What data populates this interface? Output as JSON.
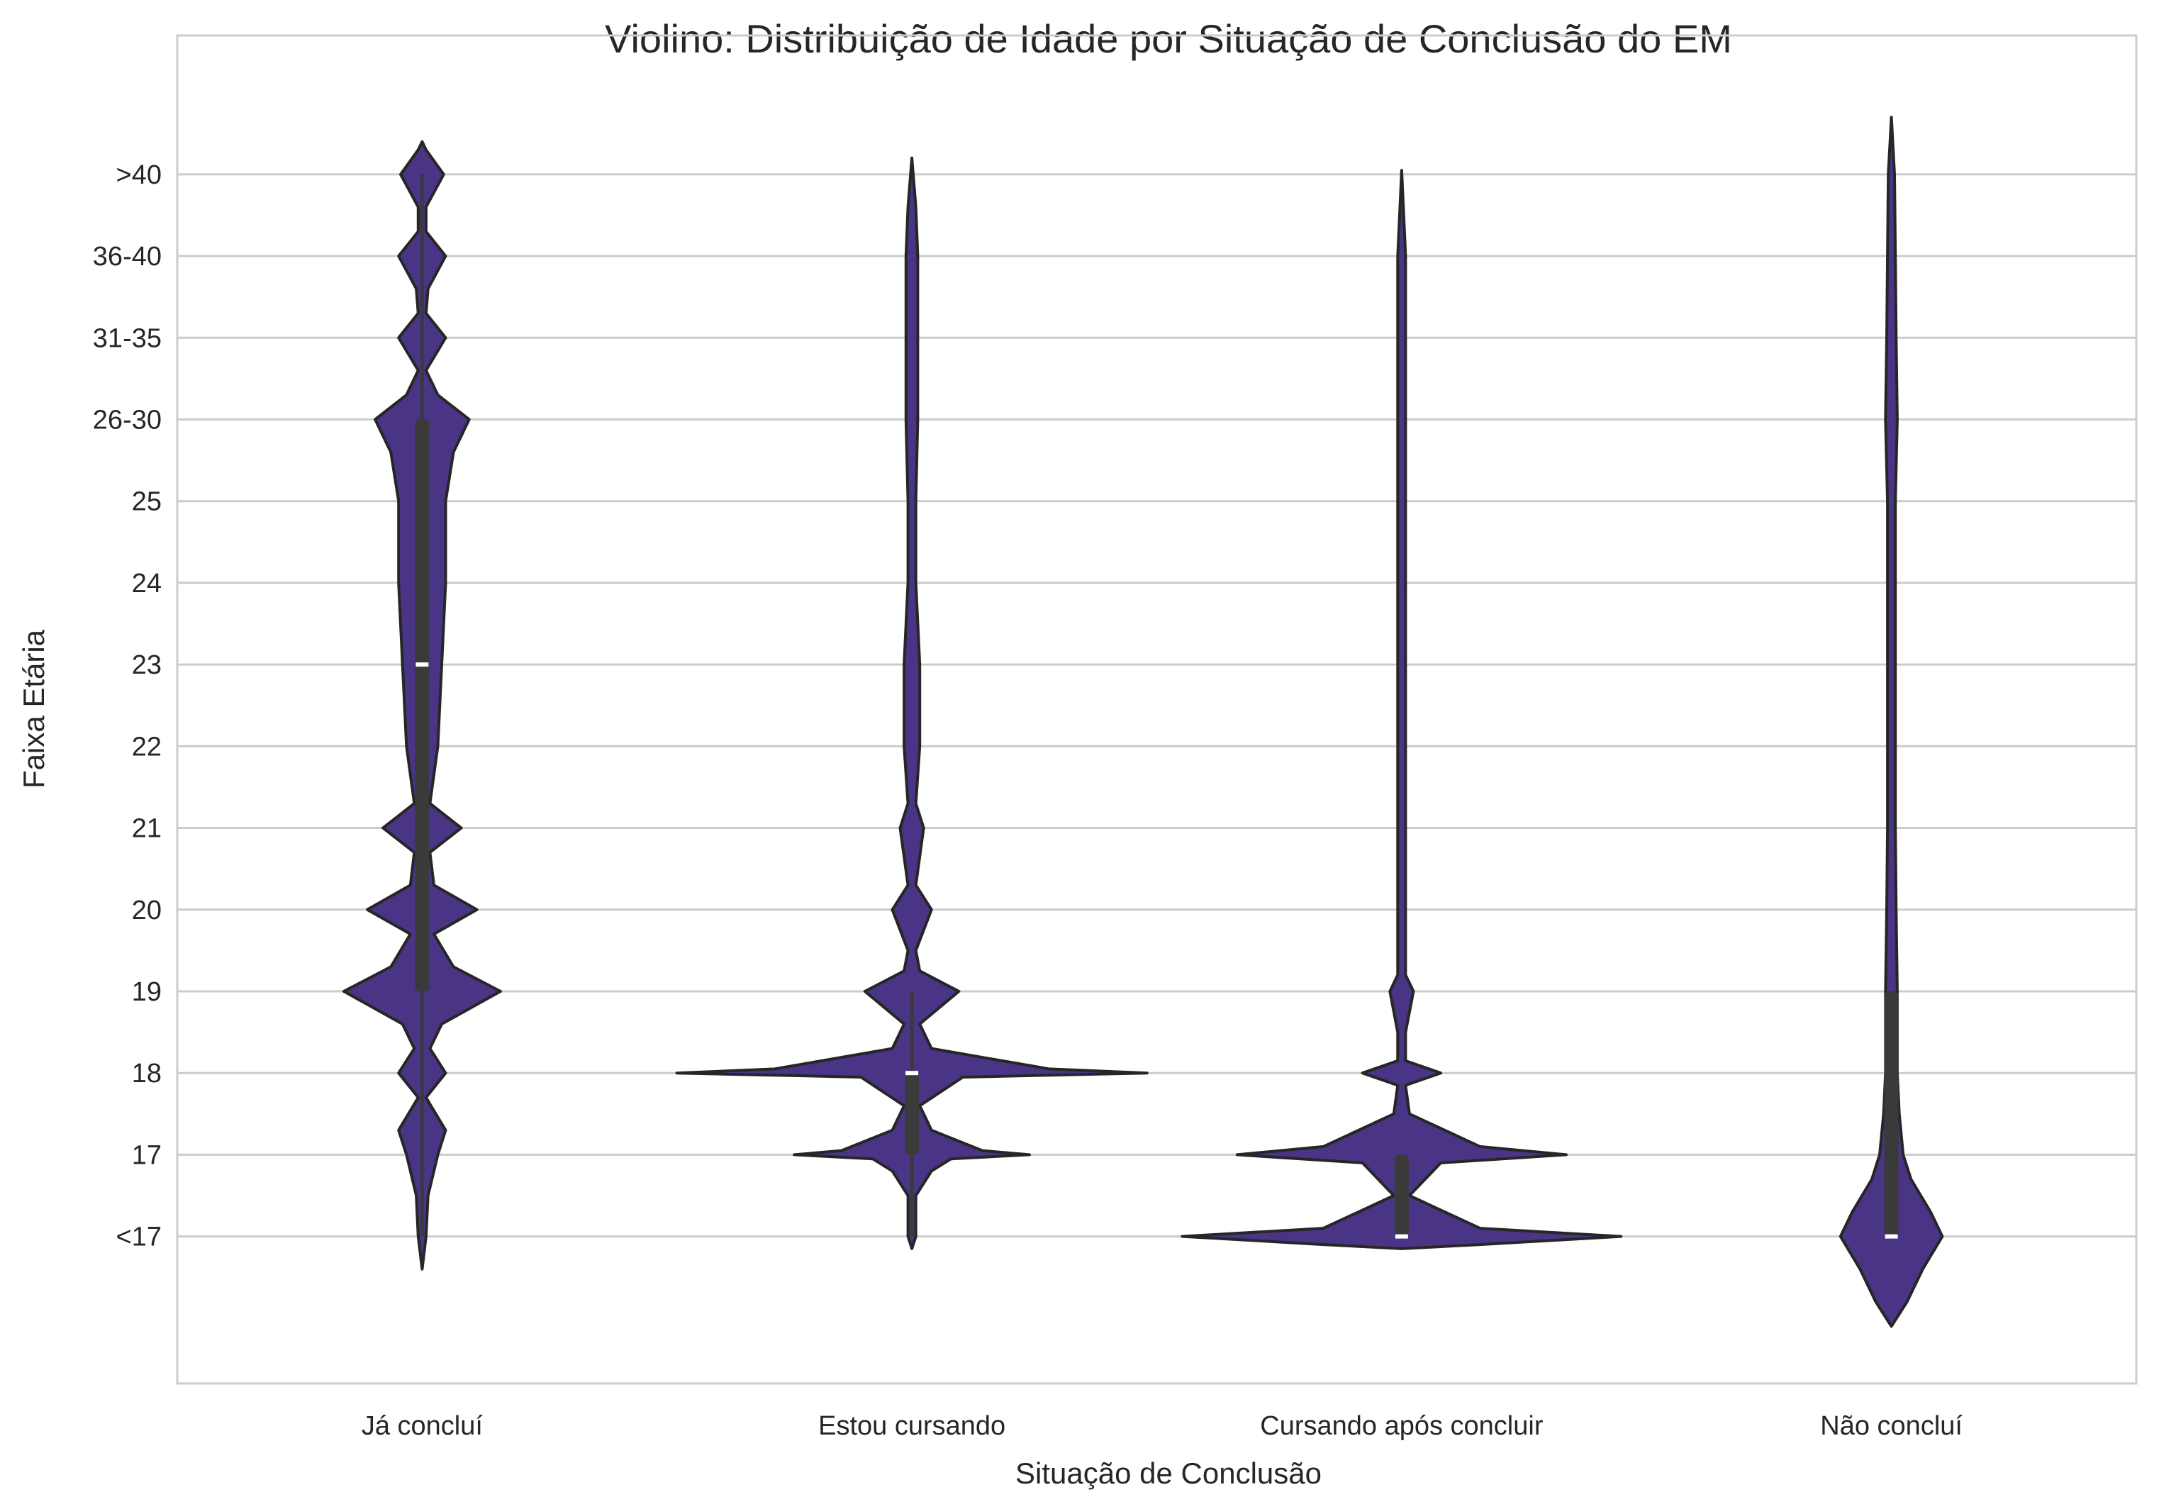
{
  "chart_data": {
    "type": "violin",
    "title": "Violino: Distribuição de Idade por Situação de Conclusão do EM",
    "xlabel": "Situação de Conclusão",
    "ylabel": "Faixa Etária",
    "categories": [
      "Já concluí",
      "Estou cursando",
      "Cursando após concluir",
      "Não concluí"
    ],
    "y_tick_labels": [
      "<17",
      "17",
      "18",
      "19",
      "20",
      "21",
      "22",
      "23",
      "24",
      "25",
      "26-30",
      "31-35",
      "36-40",
      ">40"
    ],
    "y_index_range": [
      -1.8,
      14.7
    ],
    "grid": "horizontal",
    "colors": {
      "violin_fill": "#4a3486",
      "violin_edge": "#262626",
      "box": "#3a3a3a",
      "median": "#ffffff",
      "grid": "#cccccc",
      "frame": "#cccccc"
    },
    "violins": [
      {
        "category": "Já concluí",
        "profile": [
          [
            -0.4,
            0.0
          ],
          [
            0.0,
            0.01
          ],
          [
            0.5,
            0.015
          ],
          [
            1.0,
            0.04
          ],
          [
            1.3,
            0.06
          ],
          [
            1.7,
            0.01
          ],
          [
            2.0,
            0.06
          ],
          [
            2.3,
            0.02
          ],
          [
            2.6,
            0.05
          ],
          [
            3.0,
            0.2
          ],
          [
            3.3,
            0.08
          ],
          [
            3.7,
            0.03
          ],
          [
            4.0,
            0.14
          ],
          [
            4.3,
            0.03
          ],
          [
            4.7,
            0.02
          ],
          [
            5.0,
            0.1
          ],
          [
            5.3,
            0.02
          ],
          [
            6.0,
            0.04
          ],
          [
            7.0,
            0.05
          ],
          [
            8.0,
            0.06
          ],
          [
            9.0,
            0.06
          ],
          [
            9.6,
            0.08
          ],
          [
            10.0,
            0.12
          ],
          [
            10.3,
            0.04
          ],
          [
            10.6,
            0.01
          ],
          [
            11.0,
            0.06
          ],
          [
            11.3,
            0.01
          ],
          [
            11.6,
            0.015
          ],
          [
            12.0,
            0.06
          ],
          [
            12.3,
            0.01
          ],
          [
            12.6,
            0.01
          ],
          [
            13.0,
            0.055
          ],
          [
            13.3,
            0.01
          ],
          [
            13.4,
            0.0
          ]
        ],
        "box_q1": 3,
        "box_q3": 10,
        "median": 7,
        "whisker_low": 0,
        "whisker_high": 13
      },
      {
        "category": "Estou cursando",
        "profile": [
          [
            -0.15,
            0.0
          ],
          [
            0.0,
            0.01
          ],
          [
            0.5,
            0.01
          ],
          [
            0.8,
            0.05
          ],
          [
            0.95,
            0.1
          ],
          [
            1.0,
            0.3
          ],
          [
            1.05,
            0.18
          ],
          [
            1.3,
            0.05
          ],
          [
            1.6,
            0.02
          ],
          [
            1.95,
            0.13
          ],
          [
            2.0,
            0.6
          ],
          [
            2.05,
            0.35
          ],
          [
            2.3,
            0.05
          ],
          [
            2.6,
            0.02
          ],
          [
            3.0,
            0.12
          ],
          [
            3.25,
            0.02
          ],
          [
            3.5,
            0.01
          ],
          [
            4.0,
            0.05
          ],
          [
            4.3,
            0.01
          ],
          [
            5.0,
            0.03
          ],
          [
            5.3,
            0.01
          ],
          [
            6.0,
            0.02
          ],
          [
            7.0,
            0.02
          ],
          [
            8.0,
            0.01
          ],
          [
            9.0,
            0.01
          ],
          [
            10.0,
            0.015
          ],
          [
            11.0,
            0.015
          ],
          [
            12.0,
            0.015
          ],
          [
            12.6,
            0.01
          ],
          [
            13.2,
            0.0
          ]
        ],
        "box_q1": 1,
        "box_q3": 2,
        "median": 2,
        "whisker_low": 0,
        "whisker_high": 3
      },
      {
        "category": "Cursando após concluir",
        "profile": [
          [
            -0.15,
            0.0
          ],
          [
            -0.1,
            0.2
          ],
          [
            0.0,
            0.56
          ],
          [
            0.1,
            0.2
          ],
          [
            0.5,
            0.02
          ],
          [
            0.9,
            0.1
          ],
          [
            1.0,
            0.42
          ],
          [
            1.1,
            0.2
          ],
          [
            1.5,
            0.02
          ],
          [
            1.85,
            0.01
          ],
          [
            2.0,
            0.1
          ],
          [
            2.15,
            0.01
          ],
          [
            2.5,
            0.01
          ],
          [
            3.0,
            0.03
          ],
          [
            3.2,
            0.01
          ],
          [
            4.0,
            0.01
          ],
          [
            5.0,
            0.01
          ],
          [
            6.0,
            0.01
          ],
          [
            8.0,
            0.01
          ],
          [
            10.0,
            0.01
          ],
          [
            12.0,
            0.01
          ],
          [
            13.05,
            0.0
          ]
        ],
        "box_q1": 0,
        "box_q3": 1,
        "median": 0,
        "whisker_low": 0,
        "whisker_high": 1
      },
      {
        "category": "Não concluí",
        "profile": [
          [
            -1.1,
            0.0
          ],
          [
            -0.8,
            0.04
          ],
          [
            -0.4,
            0.08
          ],
          [
            0.0,
            0.13
          ],
          [
            0.3,
            0.1
          ],
          [
            0.7,
            0.05
          ],
          [
            1.0,
            0.03
          ],
          [
            1.5,
            0.02
          ],
          [
            2.0,
            0.015
          ],
          [
            3.0,
            0.015
          ],
          [
            4.0,
            0.012
          ],
          [
            5.0,
            0.01
          ],
          [
            6.0,
            0.01
          ],
          [
            7.0,
            0.01
          ],
          [
            8.0,
            0.01
          ],
          [
            9.0,
            0.01
          ],
          [
            10.0,
            0.015
          ],
          [
            11.0,
            0.012
          ],
          [
            12.0,
            0.01
          ],
          [
            13.0,
            0.008
          ],
          [
            13.7,
            0.0
          ]
        ],
        "box_q1": 0,
        "box_q3": 3,
        "median": 0,
        "whisker_low": 0,
        "whisker_high": 3
      }
    ]
  }
}
